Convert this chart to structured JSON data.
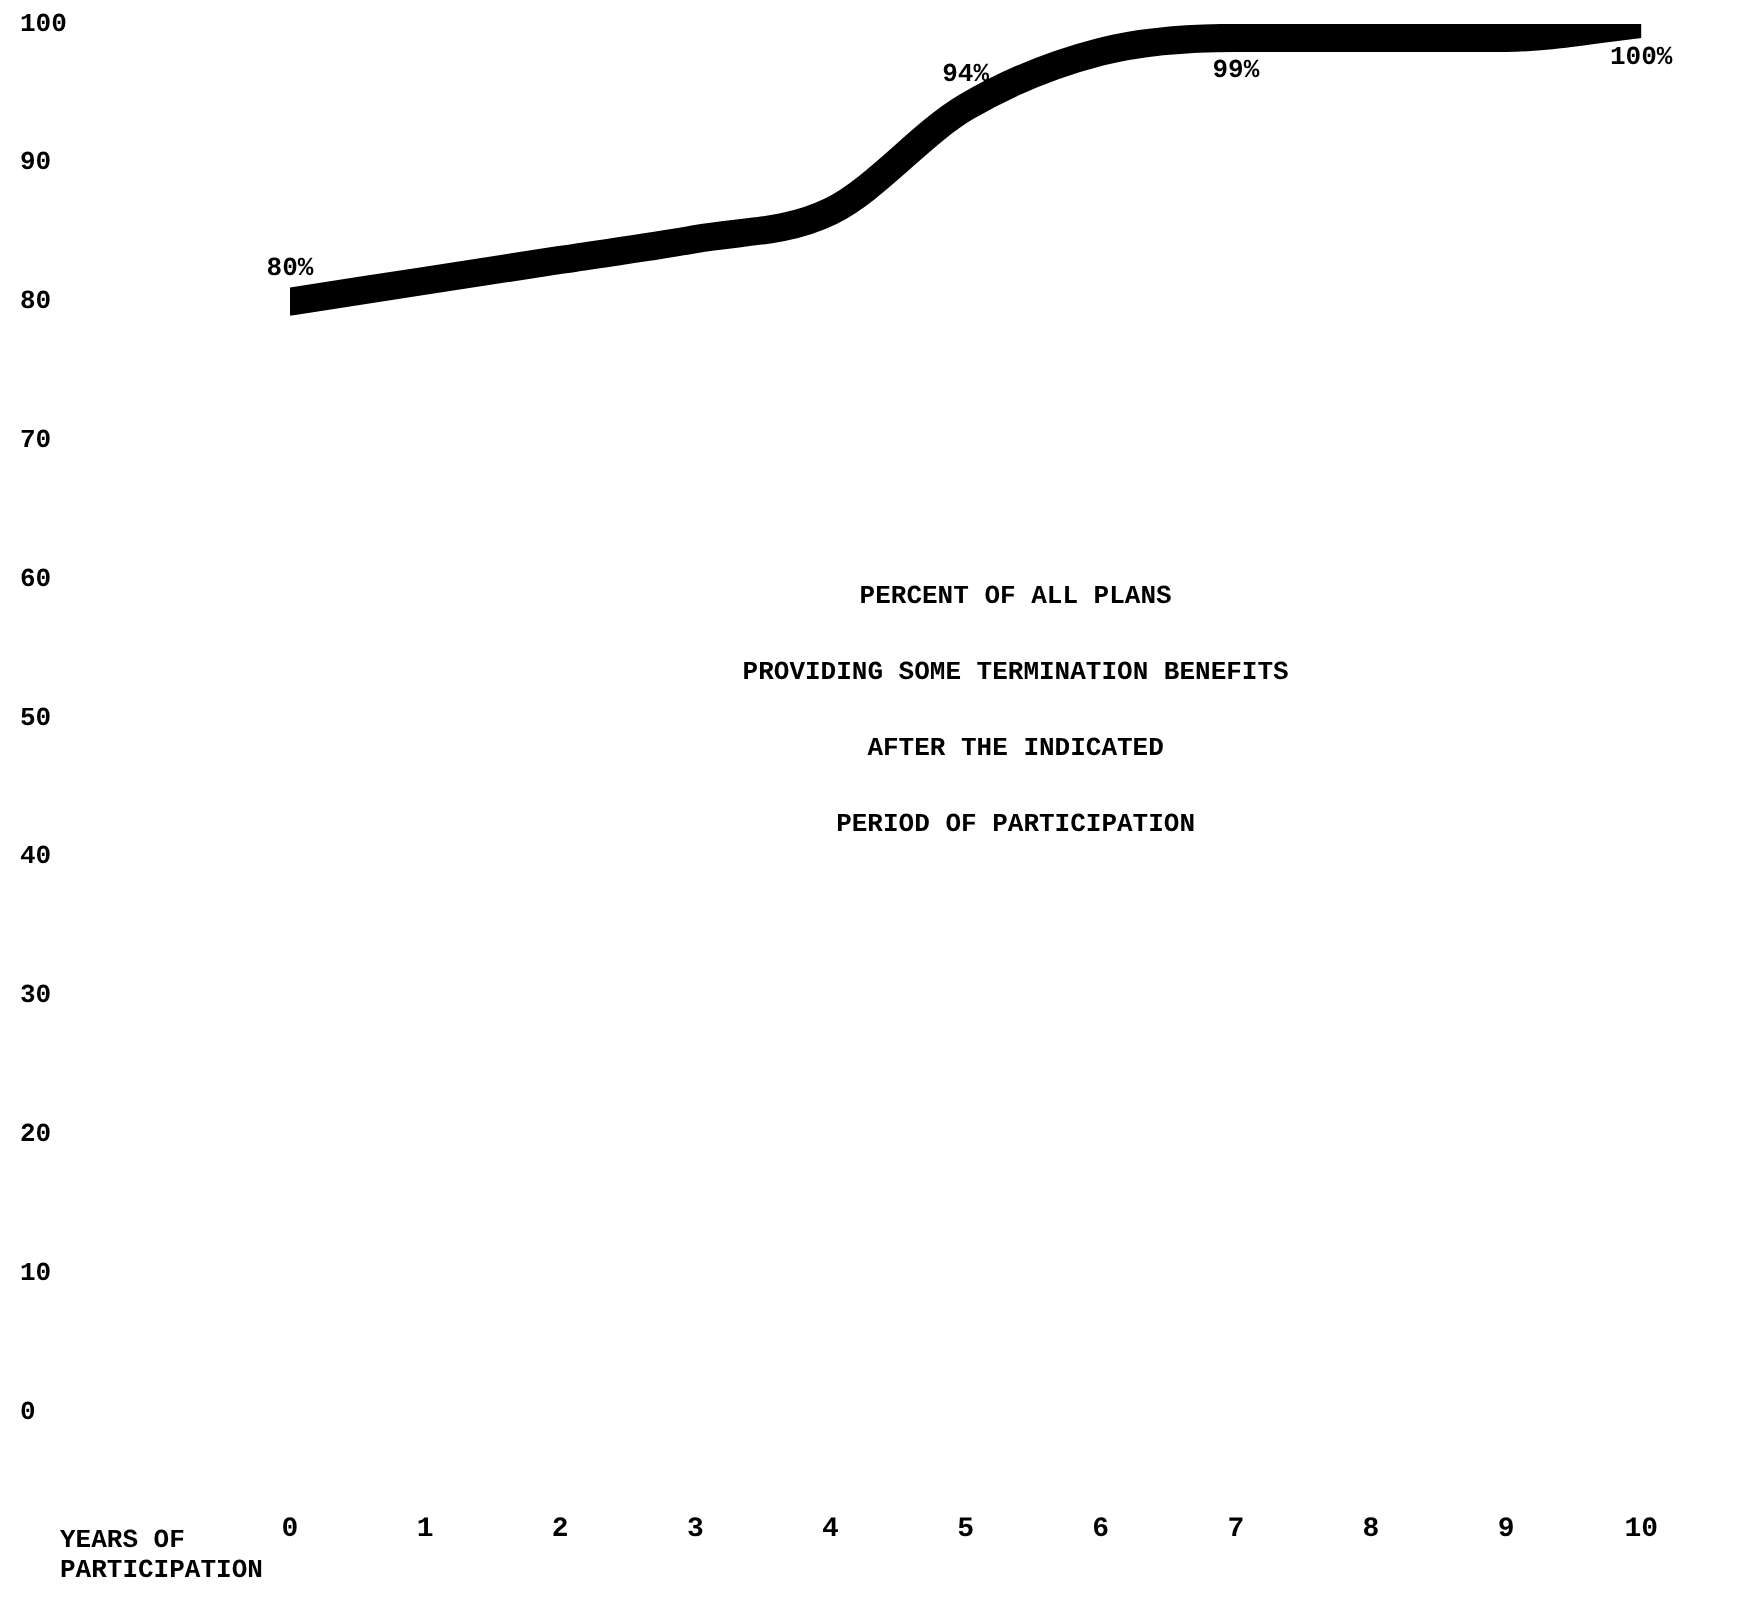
{
  "chart_data": {
    "type": "line",
    "title": "PERCENT OF ALL PLANS\nPROVIDING SOME TERMINATION BENEFITS\nAFTER THE INDICATED\nPERIOD OF PARTICIPATION",
    "xlabel": "YEARS OF\nPARTICIPATION",
    "x": [
      0,
      1,
      2,
      3,
      4,
      5,
      6,
      7,
      8,
      9,
      10
    ],
    "series": [
      {
        "color": "#000000",
        "values": [
          80,
          81.5,
          83,
          84.5,
          86.5,
          94,
          98,
          99,
          99,
          99,
          100
        ],
        "value_labels": [
          "80%",
          null,
          null,
          null,
          null,
          "94%",
          null,
          "99%",
          null,
          null,
          "100%"
        ]
      }
    ],
    "xlim": [
      0,
      10
    ],
    "xticks": [
      0,
      1,
      2,
      3,
      4,
      5,
      6,
      7,
      8,
      9,
      10
    ],
    "ylim": [
      0,
      100
    ],
    "yticks": [
      0,
      10,
      20,
      30,
      40,
      50,
      60,
      70,
      80,
      90,
      100
    ],
    "grid": false,
    "legend": false,
    "marker": "none",
    "line_style": "solid"
  }
}
